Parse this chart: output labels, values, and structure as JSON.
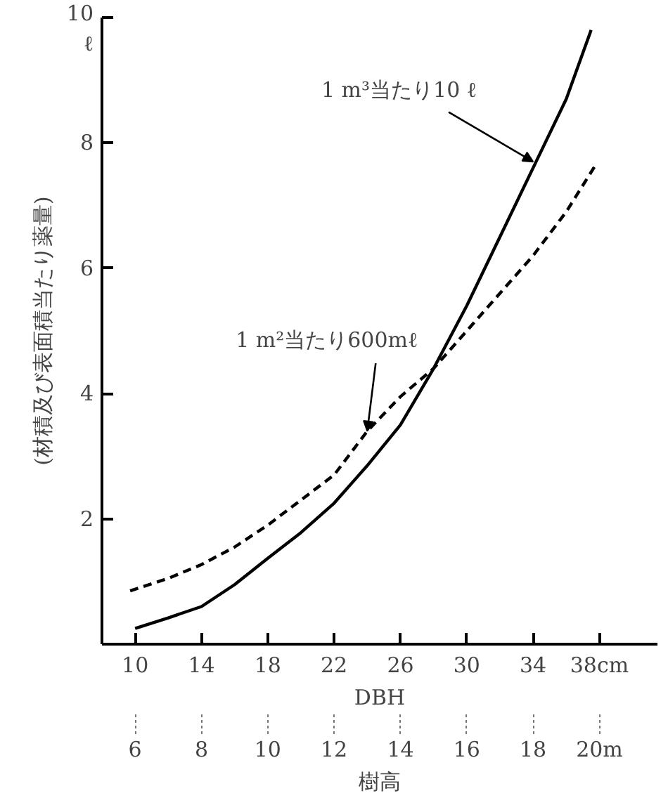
{
  "chart_data": {
    "type": "line",
    "xlabel": "DBH",
    "x2label": "樹高",
    "ylabel": "(材積及び表面積当たり薬量)",
    "xlim": [
      8,
      41.5
    ],
    "xticks": [
      10,
      14,
      18,
      22,
      26,
      30,
      34,
      {
        "value": 38,
        "label": "38cm"
      }
    ],
    "x2lim": [
      5,
      21.75
    ],
    "x2ticks": [
      6,
      8,
      10,
      12,
      14,
      16,
      18,
      {
        "value": 20,
        "label": "20m"
      }
    ],
    "ylim": [
      0,
      10
    ],
    "yticks": [
      2,
      4,
      6,
      8,
      {
        "value": 10,
        "label": "10\nℓ"
      }
    ],
    "grid": false,
    "series": [
      {
        "color": "#000000",
        "line_style": "solid",
        "x": [
          10,
          12,
          14,
          16,
          18,
          20,
          22,
          24,
          26,
          28,
          30,
          32,
          34,
          36,
          37.5
        ],
        "values": [
          0.25,
          0.42,
          0.6,
          0.95,
          1.37,
          1.78,
          2.25,
          2.85,
          3.5,
          4.4,
          5.4,
          6.5,
          7.6,
          8.7,
          9.8
        ]
      },
      {
        "color": "#000000",
        "line_style": "dashed",
        "x": [
          9.7,
          12,
          14,
          16,
          18,
          20,
          22,
          24,
          26,
          28,
          30,
          32,
          34,
          36,
          37.8
        ],
        "values": [
          0.85,
          1.05,
          1.27,
          1.55,
          1.9,
          2.3,
          2.7,
          3.4,
          3.95,
          4.4,
          5.0,
          5.6,
          6.2,
          6.9,
          7.66
        ]
      }
    ],
    "annotations": [
      {
        "text": "1 m³当たり10 ℓ",
        "x": 34,
        "y": 7.7
      },
      {
        "text": "1 m²当たり600mℓ",
        "x": 24,
        "y": 3.4
      }
    ]
  }
}
